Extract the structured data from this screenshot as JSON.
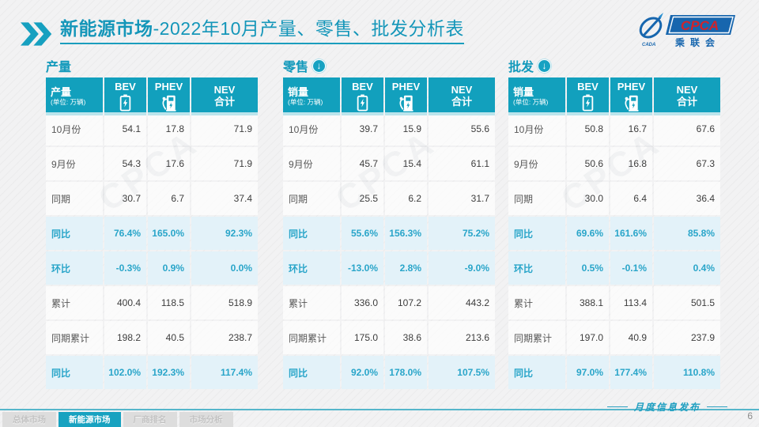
{
  "title": {
    "bold": "新能源市场",
    "rest": "-2022年10月产量、零售、批发分析表"
  },
  "logo": {
    "cpca": "CPCA",
    "sub": "乘联会",
    "cada": "CADA"
  },
  "watermark_text": "CPCA",
  "tables": [
    {
      "section": "产量",
      "has_arrow": false,
      "unit_label": "产量",
      "unit_sub": "(单位: 万辆)",
      "col_headers": {
        "bev": "BEV",
        "phev": "PHEV",
        "nev_line1": "NEV",
        "nev_line2": "合计"
      },
      "rows": [
        {
          "label": "10月份",
          "values": [
            "54.1",
            "17.8",
            "71.9"
          ],
          "highlight": false
        },
        {
          "label": "9月份",
          "values": [
            "54.3",
            "17.6",
            "71.9"
          ],
          "highlight": false
        },
        {
          "label": "同期",
          "values": [
            "30.7",
            "6.7",
            "37.4"
          ],
          "highlight": false
        },
        {
          "label": "同比",
          "values": [
            "76.4%",
            "165.0%",
            "92.3%"
          ],
          "highlight": true
        },
        {
          "label": "环比",
          "values": [
            "-0.3%",
            "0.9%",
            "0.0%"
          ],
          "highlight": true
        },
        {
          "label": "累计",
          "values": [
            "400.4",
            "118.5",
            "518.9"
          ],
          "highlight": false
        },
        {
          "label": "同期累计",
          "values": [
            "198.2",
            "40.5",
            "238.7"
          ],
          "highlight": false
        },
        {
          "label": "同比",
          "values": [
            "102.0%",
            "192.3%",
            "117.4%"
          ],
          "highlight": true
        }
      ]
    },
    {
      "section": "零售",
      "has_arrow": true,
      "unit_label": "销量",
      "unit_sub": "(单位: 万辆)",
      "col_headers": {
        "bev": "BEV",
        "phev": "PHEV",
        "nev_line1": "NEV",
        "nev_line2": "合计"
      },
      "rows": [
        {
          "label": "10月份",
          "values": [
            "39.7",
            "15.9",
            "55.6"
          ],
          "highlight": false
        },
        {
          "label": "9月份",
          "values": [
            "45.7",
            "15.4",
            "61.1"
          ],
          "highlight": false
        },
        {
          "label": "同期",
          "values": [
            "25.5",
            "6.2",
            "31.7"
          ],
          "highlight": false
        },
        {
          "label": "同比",
          "values": [
            "55.6%",
            "156.3%",
            "75.2%"
          ],
          "highlight": true
        },
        {
          "label": "环比",
          "values": [
            "-13.0%",
            "2.8%",
            "-9.0%"
          ],
          "highlight": true
        },
        {
          "label": "累计",
          "values": [
            "336.0",
            "107.2",
            "443.2"
          ],
          "highlight": false
        },
        {
          "label": "同期累计",
          "values": [
            "175.0",
            "38.6",
            "213.6"
          ],
          "highlight": false
        },
        {
          "label": "同比",
          "values": [
            "92.0%",
            "178.0%",
            "107.5%"
          ],
          "highlight": true
        }
      ]
    },
    {
      "section": "批发",
      "has_arrow": true,
      "unit_label": "销量",
      "unit_sub": "(单位: 万辆)",
      "col_headers": {
        "bev": "BEV",
        "phev": "PHEV",
        "nev_line1": "NEV",
        "nev_line2": "合计"
      },
      "rows": [
        {
          "label": "10月份",
          "values": [
            "50.8",
            "16.7",
            "67.6"
          ],
          "highlight": false
        },
        {
          "label": "9月份",
          "values": [
            "50.6",
            "16.8",
            "67.3"
          ],
          "highlight": false
        },
        {
          "label": "同期",
          "values": [
            "30.0",
            "6.4",
            "36.4"
          ],
          "highlight": false
        },
        {
          "label": "同比",
          "values": [
            "69.6%",
            "161.6%",
            "85.8%"
          ],
          "highlight": true
        },
        {
          "label": "环比",
          "values": [
            "0.5%",
            "-0.1%",
            "0.4%"
          ],
          "highlight": true
        },
        {
          "label": "累计",
          "values": [
            "388.1",
            "113.4",
            "501.5"
          ],
          "highlight": false
        },
        {
          "label": "同期累计",
          "values": [
            "197.0",
            "40.9",
            "237.9"
          ],
          "highlight": false
        },
        {
          "label": "同比",
          "values": [
            "97.0%",
            "177.4%",
            "110.8%"
          ],
          "highlight": true
        }
      ]
    }
  ],
  "footer": {
    "tabs": [
      {
        "label": "总体市场",
        "active": false
      },
      {
        "label": "新能源市场",
        "active": true
      },
      {
        "label": "厂商排名",
        "active": false
      },
      {
        "label": "市场分析",
        "active": false
      }
    ],
    "publish_label": "月度信息发布",
    "page_number": "6"
  },
  "colors": {
    "accent_teal": "#12a0bd",
    "highlight_bg": "#e3f2f9",
    "highlight_text": "#29a5c9",
    "logo_blue": "#1766ae",
    "logo_red": "#d2232a"
  }
}
